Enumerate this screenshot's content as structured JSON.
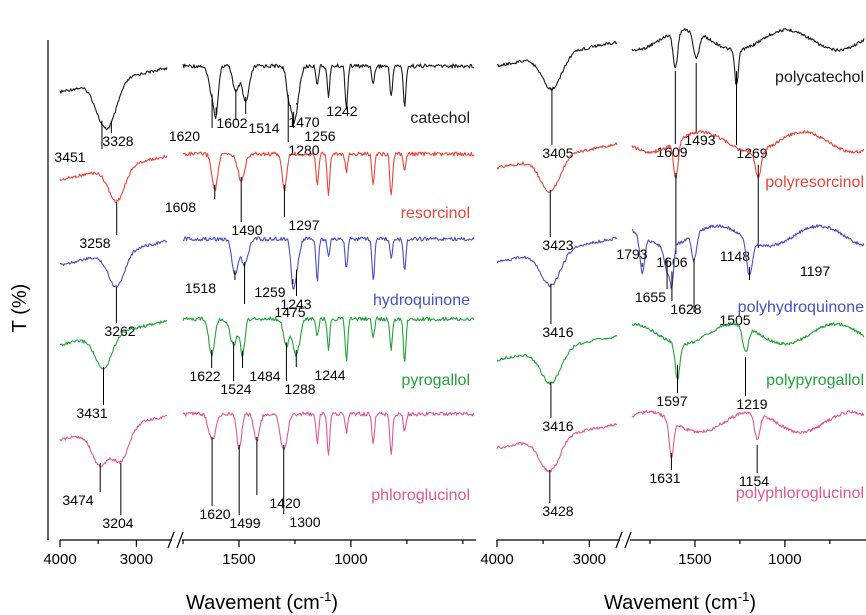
{
  "chart_data": {
    "type": "line",
    "ylabel": "T (%)",
    "colors": {
      "catechol": "#1a1a1a",
      "resorcinol": "#e8463a",
      "hydroquinone": "#4a4fbf",
      "pyrogallol": "#23a23a",
      "phloroglucinol": "#e05a8f"
    },
    "panels": [
      {
        "xlabel_prefix": "Wavement (cm",
        "xlabel_sup": "-1",
        "xlabel_suffix": ")",
        "high_segment": {
          "xlim": [
            4000,
            2600
          ],
          "ticks": [
            4000,
            3000
          ]
        },
        "low_segment": {
          "xlim": [
            1750,
            450
          ],
          "ticks": [
            1500,
            1000
          ]
        },
        "series": [
          {
            "name": "catechol",
            "color": "#1a1a1a",
            "peaks": [
              {
                "x": 3451,
                "label": "3451"
              },
              {
                "x": 3328,
                "label": "3328"
              },
              {
                "x": 1620,
                "label": "1620"
              },
              {
                "x": 1602,
                "label": "1602"
              },
              {
                "x": 1514,
                "label": "1514"
              },
              {
                "x": 1470,
                "label": "1470"
              },
              {
                "x": 1280,
                "label": "1280"
              },
              {
                "x": 1256,
                "label": "1256"
              },
              {
                "x": 1242,
                "label": "1242"
              }
            ]
          },
          {
            "name": "resorcinol",
            "color": "#e8463a",
            "peaks": [
              {
                "x": 3258,
                "label": "3258"
              },
              {
                "x": 1608,
                "label": "1608"
              },
              {
                "x": 1490,
                "label": "1490"
              },
              {
                "x": 1297,
                "label": "1297"
              }
            ]
          },
          {
            "name": "hydroquinone",
            "color": "#4a4fbf",
            "peaks": [
              {
                "x": 3262,
                "label": "3262"
              },
              {
                "x": 1518,
                "label": "1518"
              },
              {
                "x": 1475,
                "label": "1475"
              },
              {
                "x": 1259,
                "label": "1259"
              },
              {
                "x": 1243,
                "label": "1243"
              }
            ]
          },
          {
            "name": "pyrogallol",
            "color": "#23a23a",
            "peaks": [
              {
                "x": 3431,
                "label": "3431"
              },
              {
                "x": 1622,
                "label": "1622"
              },
              {
                "x": 1524,
                "label": "1524"
              },
              {
                "x": 1484,
                "label": "1484"
              },
              {
                "x": 1288,
                "label": "1288"
              },
              {
                "x": 1244,
                "label": "1244"
              }
            ]
          },
          {
            "name": "phloroglucinol",
            "color": "#e05a8f",
            "peaks": [
              {
                "x": 3474,
                "label": "3474"
              },
              {
                "x": 3204,
                "label": "3204"
              },
              {
                "x": 1620,
                "label": "1620"
              },
              {
                "x": 1499,
                "label": "1499"
              },
              {
                "x": 1420,
                "label": "1420"
              },
              {
                "x": 1300,
                "label": "1300"
              }
            ]
          }
        ]
      },
      {
        "xlabel_prefix": "Wavement (cm",
        "xlabel_sup": "-1",
        "xlabel_suffix": ")",
        "high_segment": {
          "xlim": [
            4000,
            2700
          ],
          "ticks": [
            4000,
            3000
          ]
        },
        "low_segment": {
          "xlim": [
            1850,
            560
          ],
          "ticks": [
            1500,
            1000
          ]
        },
        "series": [
          {
            "name": "polycatechol",
            "color": "#1a1a1a",
            "peaks": [
              {
                "x": 3405,
                "label": "3405"
              },
              {
                "x": 1609,
                "label": "1609"
              },
              {
                "x": 1493,
                "label": "1493"
              },
              {
                "x": 1269,
                "label": "1269"
              }
            ]
          },
          {
            "name": "polyresorcinol",
            "color": "#e8463a",
            "peaks": [
              {
                "x": 3423,
                "label": "3423"
              },
              {
                "x": 1606,
                "label": "1606"
              },
              {
                "x": 1148,
                "label": "1148"
              }
            ]
          },
          {
            "name": "polyhydroquinone",
            "color": "#4a4fbf",
            "peaks": [
              {
                "x": 3416,
                "label": "3416"
              },
              {
                "x": 1793,
                "label": "1793"
              },
              {
                "x": 1655,
                "label": "1655"
              },
              {
                "x": 1628,
                "label": "1628"
              },
              {
                "x": 1505,
                "label": "1505"
              },
              {
                "x": 1197,
                "label": "1197"
              }
            ]
          },
          {
            "name": "polypyrogallol",
            "color": "#23a23a",
            "peaks": [
              {
                "x": 3416,
                "label": "3416"
              },
              {
                "x": 1597,
                "label": "1597"
              },
              {
                "x": 1219,
                "label": "1219"
              }
            ]
          },
          {
            "name": "polyphloroglucinol",
            "color": "#e05a8f",
            "peaks": [
              {
                "x": 3428,
                "label": "3428"
              },
              {
                "x": 1631,
                "label": "1631"
              },
              {
                "x": 1154,
                "label": "1154"
              }
            ]
          }
        ]
      }
    ]
  }
}
